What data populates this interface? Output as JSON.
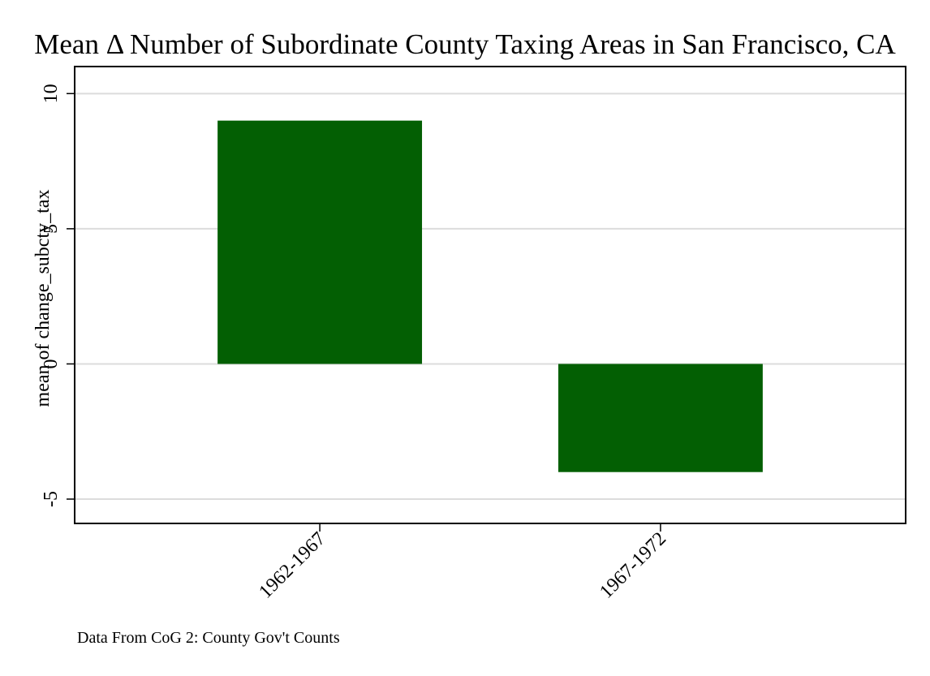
{
  "chart_data": {
    "type": "bar",
    "title": "Mean Δ Number of Subordinate County Taxing Areas in San Francisco, CA",
    "xlabel": "",
    "ylabel": "mean of change_subcty_tax",
    "categories": [
      "1962-1967",
      "1967-1972"
    ],
    "values": [
      9,
      -4
    ],
    "ylim": [
      -5.9,
      11
    ],
    "yticks": [
      -5,
      0,
      5,
      10
    ],
    "ytick_labels": [
      "-5",
      "0",
      "5",
      "10"
    ],
    "grid": true,
    "legend": "none",
    "colors": {
      "bar": "#035f03",
      "grid": "#dcdcdc",
      "axis": "#000000"
    },
    "note": "Data From CoG 2: County Gov't Counts"
  }
}
